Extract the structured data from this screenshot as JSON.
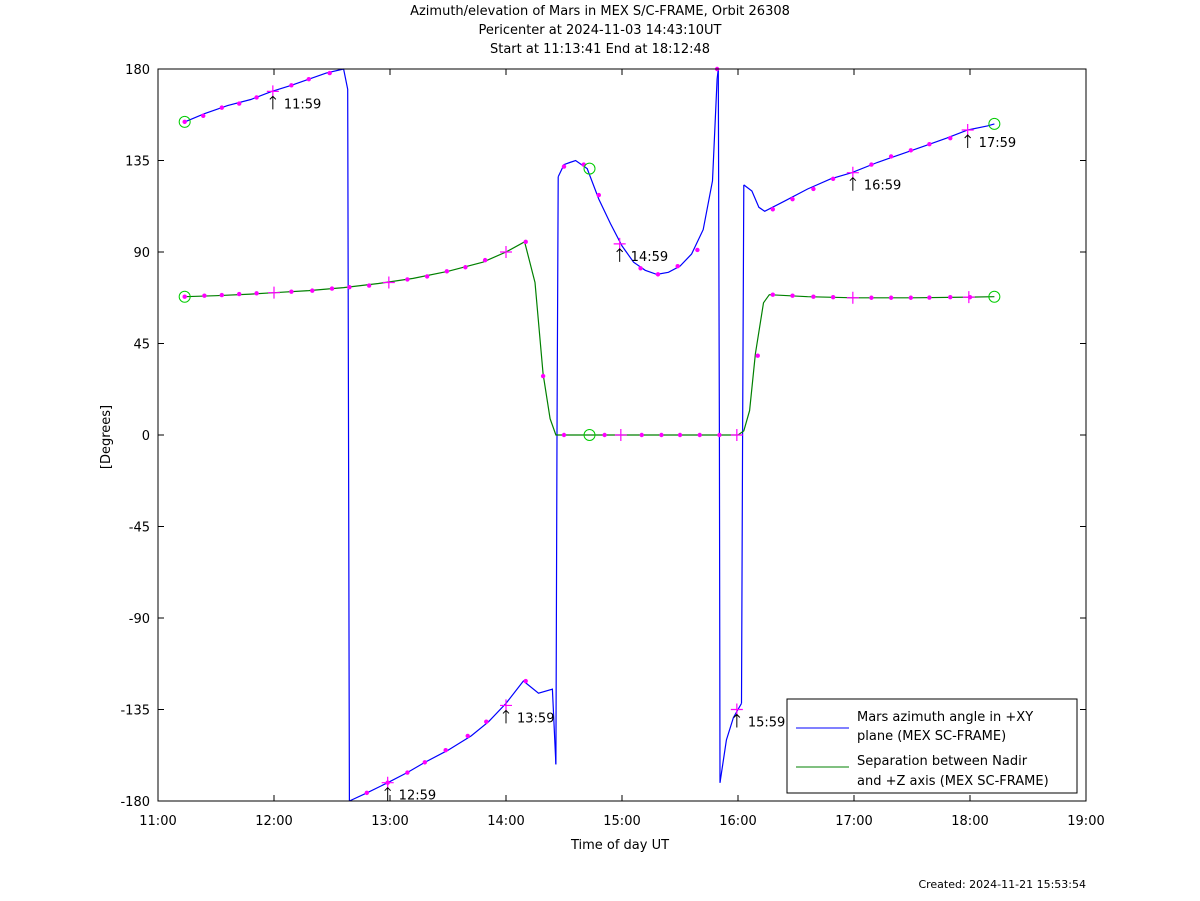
{
  "chart_data": {
    "type": "line",
    "title_lines": [
      "Azimuth/elevation of Mars in MEX S/C-FRAME,  Orbit 26308",
      "Pericenter at 2024-11-03 14:43:10UT",
      "Start at 11:13:41 End at 18:12:48"
    ],
    "xlabel": "Time of day UT",
    "ylabel": "[Degrees]",
    "xlim": [
      11.0,
      19.0
    ],
    "ylim": [
      -180,
      180
    ],
    "x_ticks": [
      11,
      12,
      13,
      14,
      15,
      16,
      17,
      18,
      19
    ],
    "x_tick_labels": [
      "11:00",
      "12:00",
      "13:00",
      "14:00",
      "15:00",
      "16:00",
      "17:00",
      "18:00",
      "19:00"
    ],
    "y_ticks": [
      180,
      135,
      90,
      45,
      0,
      -45,
      -90,
      -135,
      -180
    ],
    "y_tick_labels": [
      "180",
      "135",
      "90",
      "45",
      "0",
      "-45",
      "-90",
      "-135",
      "-180"
    ],
    "grid": false,
    "legend_position": "bottom-right",
    "series": [
      {
        "name": "Mars azimuth angle in +XY plane (MEX SC-FRAME)",
        "legend_lines": [
          "Mars azimuth angle in +XY",
          "plane (MEX SC-FRAME)"
        ],
        "color": "#0000ff",
        "segments": [
          [
            [
              11.23,
              154
            ],
            [
              11.4,
              158
            ],
            [
              11.6,
              162
            ],
            [
              11.8,
              165
            ],
            [
              11.98,
              169
            ],
            [
              12.15,
              172
            ],
            [
              12.3,
              175
            ],
            [
              12.45,
              178
            ],
            [
              12.6,
              180
            ]
          ],
          [
            [
              12.6,
              180
            ],
            [
              12.635,
              170
            ],
            [
              12.65,
              -180
            ]
          ],
          [
            [
              12.65,
              -180
            ],
            [
              12.8,
              -176
            ],
            [
              12.98,
              -171
            ],
            [
              13.15,
              -166
            ],
            [
              13.3,
              -161
            ],
            [
              13.5,
              -155
            ],
            [
              13.7,
              -148
            ],
            [
              13.85,
              -141
            ],
            [
              14.0,
              -132
            ],
            [
              14.15,
              -121
            ],
            [
              14.28,
              -127
            ],
            [
              14.4,
              -125
            ],
            [
              14.43,
              -162
            ]
          ],
          [
            [
              14.43,
              -162
            ],
            [
              14.44,
              0
            ],
            [
              14.45,
              127
            ]
          ],
          [
            [
              14.45,
              127
            ],
            [
              14.5,
              133
            ],
            [
              14.55,
              134
            ],
            [
              14.6,
              135
            ],
            [
              14.7,
              131
            ],
            [
              14.8,
              116
            ],
            [
              14.9,
              104
            ],
            [
              15.0,
              93
            ],
            [
              15.1,
              85
            ],
            [
              15.2,
              81
            ],
            [
              15.3,
              79
            ],
            [
              15.4,
              80
            ],
            [
              15.5,
              83
            ],
            [
              15.6,
              89
            ],
            [
              15.7,
              101
            ],
            [
              15.78,
              125
            ],
            [
              15.82,
              175
            ],
            [
              15.83,
              180
            ]
          ],
          [
            [
              15.83,
              180
            ],
            [
              15.84,
              0
            ],
            [
              15.845,
              -171
            ]
          ],
          [
            [
              15.845,
              -171
            ],
            [
              15.9,
              -150
            ],
            [
              15.96,
              -139
            ],
            [
              16.0,
              -135
            ],
            [
              16.03,
              -132
            ]
          ],
          [
            [
              16.03,
              -132
            ],
            [
              16.04,
              0
            ],
            [
              16.05,
              123
            ]
          ],
          [
            [
              16.05,
              123
            ],
            [
              16.12,
              120
            ],
            [
              16.18,
              112
            ],
            [
              16.23,
              110
            ],
            [
              16.4,
              115
            ],
            [
              16.6,
              121
            ],
            [
              16.8,
              126
            ],
            [
              16.98,
              129
            ],
            [
              17.2,
              134
            ],
            [
              17.4,
              138
            ],
            [
              17.6,
              142
            ],
            [
              17.8,
              146
            ],
            [
              17.98,
              150
            ],
            [
              18.15,
              152
            ],
            [
              18.21,
              153
            ]
          ]
        ],
        "dots": [
          [
            11.23,
            154
          ],
          [
            11.39,
            157
          ],
          [
            11.55,
            161
          ],
          [
            11.7,
            163
          ],
          [
            11.85,
            166
          ],
          [
            12.15,
            172
          ],
          [
            12.3,
            175
          ],
          [
            12.48,
            178
          ],
          [
            12.8,
            -176
          ],
          [
            12.98,
            -171
          ],
          [
            13.15,
            -166
          ],
          [
            13.3,
            -161
          ],
          [
            13.48,
            -155
          ],
          [
            13.67,
            -148
          ],
          [
            13.83,
            -141
          ],
          [
            14.17,
            -121
          ],
          [
            14.5,
            132
          ],
          [
            14.67,
            133
          ],
          [
            14.8,
            118
          ],
          [
            15.16,
            82
          ],
          [
            15.31,
            79
          ],
          [
            15.48,
            83
          ],
          [
            15.65,
            91
          ],
          [
            15.82,
            180
          ],
          [
            16.3,
            111
          ],
          [
            16.47,
            116
          ],
          [
            16.65,
            121
          ],
          [
            16.82,
            126
          ],
          [
            17.15,
            133
          ],
          [
            17.32,
            137
          ],
          [
            17.49,
            140
          ],
          [
            17.65,
            143
          ],
          [
            17.83,
            146
          ]
        ],
        "crosses": [
          [
            11.99,
            169
          ],
          [
            12.98,
            -171
          ],
          [
            14.0,
            -133
          ],
          [
            14.98,
            94
          ],
          [
            15.99,
            -135
          ],
          [
            16.99,
            129
          ],
          [
            17.98,
            150
          ]
        ],
        "tick_annotations": [
          {
            "x": 11.99,
            "y": 169,
            "label": "11:59"
          },
          {
            "x": 12.98,
            "y": -171,
            "label": "12:59"
          },
          {
            "x": 14.0,
            "y": -133,
            "label": "13:59"
          },
          {
            "x": 14.98,
            "y": 94,
            "label": "14:59"
          },
          {
            "x": 15.99,
            "y": -135,
            "label": "15:59"
          },
          {
            "x": 16.99,
            "y": 129,
            "label": "16:59"
          },
          {
            "x": 17.98,
            "y": 150,
            "label": "17:59"
          }
        ],
        "circles": [
          [
            11.23,
            154
          ],
          [
            14.72,
            131
          ],
          [
            18.21,
            153
          ]
        ]
      },
      {
        "name": "Separation between Nadir and +Z axis (MEX SC-FRAME)",
        "legend_lines": [
          "Separation between Nadir",
          "and +Z axis (MEX SC-FRAME)"
        ],
        "color": "#008000",
        "segments": [
          [
            [
              11.23,
              68
            ],
            [
              11.5,
              68.5
            ],
            [
              11.8,
              69.3
            ],
            [
              12.0,
              70
            ],
            [
              12.3,
              71
            ],
            [
              12.6,
              72.5
            ],
            [
              12.9,
              74.5
            ],
            [
              13.2,
              77
            ],
            [
              13.5,
              80.5
            ],
            [
              13.8,
              85
            ],
            [
              14.0,
              90
            ],
            [
              14.16,
              95
            ],
            [
              14.25,
              75
            ],
            [
              14.32,
              30
            ],
            [
              14.38,
              8
            ],
            [
              14.43,
              0
            ],
            [
              14.7,
              0
            ],
            [
              15.0,
              0
            ],
            [
              15.5,
              0
            ],
            [
              16.0,
              0
            ],
            [
              16.05,
              2
            ],
            [
              16.1,
              12
            ],
            [
              16.15,
              40
            ],
            [
              16.22,
              65
            ],
            [
              16.27,
              69
            ],
            [
              16.6,
              68
            ],
            [
              17.0,
              67.5
            ],
            [
              17.5,
              67.5
            ],
            [
              18.0,
              67.8
            ],
            [
              18.21,
              68
            ]
          ]
        ],
        "dots": [
          [
            11.23,
            68
          ],
          [
            11.4,
            68.5
          ],
          [
            11.55,
            68.8
          ],
          [
            11.7,
            69.3
          ],
          [
            11.85,
            69.7
          ],
          [
            12.15,
            70.5
          ],
          [
            12.33,
            71
          ],
          [
            12.5,
            72
          ],
          [
            12.65,
            72.7
          ],
          [
            12.82,
            73.5
          ],
          [
            13.15,
            76.5
          ],
          [
            13.32,
            78
          ],
          [
            13.49,
            80.5
          ],
          [
            13.65,
            82.5
          ],
          [
            13.82,
            86
          ],
          [
            14.17,
            95
          ],
          [
            14.32,
            29
          ],
          [
            14.5,
            0
          ],
          [
            14.85,
            0
          ],
          [
            15.17,
            0
          ],
          [
            15.34,
            0
          ],
          [
            15.5,
            0
          ],
          [
            15.67,
            0
          ],
          [
            15.84,
            0
          ],
          [
            16.17,
            39
          ],
          [
            16.3,
            69
          ],
          [
            16.47,
            68.5
          ],
          [
            16.65,
            68
          ],
          [
            16.82,
            67.8
          ],
          [
            17.15,
            67.5
          ],
          [
            17.32,
            67.5
          ],
          [
            17.49,
            67.5
          ],
          [
            17.65,
            67.6
          ],
          [
            17.83,
            67.8
          ],
          [
            18.0,
            67.8
          ]
        ],
        "crosses": [
          [
            12.0,
            70
          ],
          [
            12.99,
            75
          ],
          [
            14.0,
            90
          ],
          [
            14.99,
            0
          ],
          [
            15.99,
            0
          ],
          [
            16.99,
            67.5
          ],
          [
            17.99,
            67.8
          ]
        ],
        "circles": [
          [
            11.23,
            68
          ],
          [
            14.72,
            0
          ],
          [
            18.21,
            68
          ]
        ]
      }
    ],
    "marker_colors": {
      "dot": "#ff00ff",
      "cross": "#ff00ff",
      "circle": "#00cc00"
    }
  },
  "footer": {
    "created": "Created: 2024-11-21 15:53:54"
  }
}
